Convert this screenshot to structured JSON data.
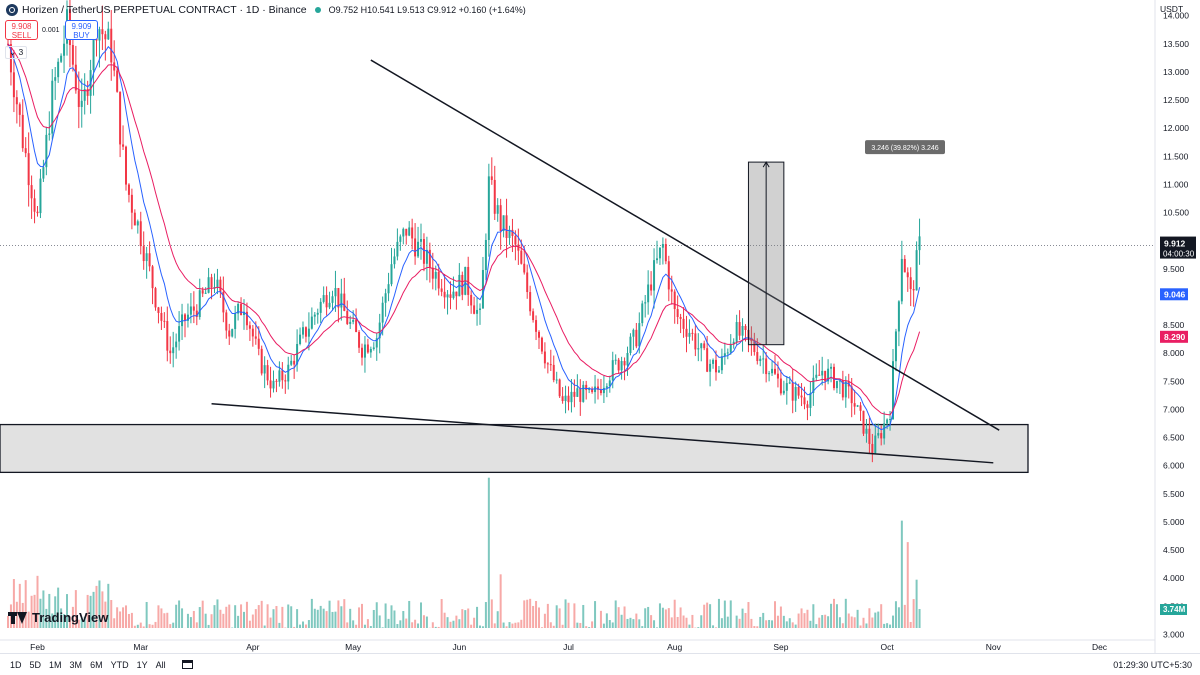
{
  "header": {
    "title": "Horizen / TetherUS PERPETUAL CONTRACT · 1D · Binance",
    "ohlc": "O9.752 H10.541 L9.513 C9.912 +0.160 (+1.64%)",
    "sell_price": "9.908",
    "sell_label": "SELL",
    "spread": "0.001",
    "buy_price": "9.909",
    "buy_label": "BUY",
    "indicators_count": "3",
    "currency": "USDT"
  },
  "brand": "TradingView",
  "bottom": {
    "timeframes": [
      "1D",
      "5D",
      "1M",
      "3M",
      "6M",
      "YTD",
      "1Y",
      "All"
    ],
    "clock": "01:29:30 UTC+5:30"
  },
  "colors": {
    "up": "#26a69a",
    "down": "#f23645",
    "ema_fast": "#2962ff",
    "ema_slow": "#e91e63",
    "vol_up": "#7fc8bf",
    "vol_down": "#f7a9a7"
  },
  "chart_data": {
    "type": "candlestick",
    "symbol": "Horizen / TetherUS PERPETUAL CONTRACT",
    "interval": "1D",
    "exchange": "Binance",
    "y_ticks": [
      "14.000",
      "13.500",
      "13.000",
      "12.500",
      "12.000",
      "11.500",
      "11.000",
      "10.500",
      "10.000",
      "9.500",
      "9.000",
      "8.500",
      "8.000",
      "7.500",
      "7.000",
      "6.500",
      "6.000",
      "5.500",
      "5.000",
      "4.500",
      "4.000",
      "3.500",
      "3.000"
    ],
    "x_labels": [
      "Feb",
      "Mar",
      "Apr",
      "May",
      "Jun",
      "Jul",
      "Aug",
      "Sep",
      "Oct",
      "Nov",
      "Dec"
    ],
    "ylim": [
      2.9,
      14.1
    ],
    "last_price": "9.912",
    "countdown": "04:00:30",
    "ema_fast_value": "9.046",
    "ema_slow_value": "8.290",
    "volume_value": "3.74M",
    "measure_label": "3.246 (39.82%) 3.246",
    "measure": {
      "from": 8.15,
      "to": 11.396,
      "start_day": 251,
      "end_day": 263
    },
    "support_zone": {
      "from": 5.88,
      "to": 6.73
    },
    "trendlines": [
      {
        "name": "descending resistance",
        "points": [
          [
            123,
            13.21
          ],
          [
            336,
            6.63
          ]
        ]
      },
      {
        "name": "descending support",
        "points": [
          [
            69,
            7.1
          ],
          [
            334,
            6.05
          ]
        ]
      }
    ],
    "price_path": [
      [
        0,
        13.5
      ],
      [
        5,
        11.8
      ],
      [
        10,
        10.4
      ],
      [
        15,
        12.6
      ],
      [
        20,
        13.8
      ],
      [
        25,
        12.2
      ],
      [
        30,
        13.9
      ],
      [
        35,
        13.4
      ],
      [
        40,
        11.0
      ],
      [
        45,
        10.1
      ],
      [
        50,
        9.0
      ],
      [
        55,
        8.0
      ],
      [
        60,
        8.6
      ],
      [
        65,
        8.9
      ],
      [
        70,
        9.3
      ],
      [
        75,
        8.4
      ],
      [
        80,
        8.9
      ],
      [
        85,
        7.9
      ],
      [
        90,
        7.4
      ],
      [
        95,
        7.7
      ],
      [
        100,
        8.3
      ],
      [
        105,
        8.8
      ],
      [
        110,
        9.2
      ],
      [
        115,
        8.6
      ],
      [
        120,
        8.1
      ],
      [
        125,
        8.3
      ],
      [
        130,
        9.6
      ],
      [
        135,
        10.2
      ],
      [
        140,
        9.8
      ],
      [
        145,
        9.4
      ],
      [
        150,
        9.1
      ],
      [
        155,
        9.3
      ],
      [
        160,
        8.6
      ],
      [
        163,
        11.0
      ],
      [
        167,
        10.3
      ],
      [
        172,
        9.9
      ],
      [
        178,
        8.7
      ],
      [
        183,
        7.8
      ],
      [
        188,
        7.1
      ],
      [
        193,
        7.3
      ],
      [
        198,
        7.2
      ],
      [
        203,
        7.6
      ],
      [
        208,
        7.9
      ],
      [
        213,
        8.3
      ],
      [
        218,
        9.3
      ],
      [
        222,
        9.9
      ],
      [
        226,
        8.7
      ],
      [
        231,
        8.4
      ],
      [
        236,
        7.9
      ],
      [
        241,
        7.7
      ],
      [
        246,
        8.4
      ],
      [
        251,
        8.2
      ],
      [
        256,
        7.9
      ],
      [
        261,
        7.5
      ],
      [
        266,
        7.3
      ],
      [
        271,
        7.2
      ],
      [
        276,
        7.7
      ],
      [
        281,
        7.5
      ],
      [
        286,
        7.2
      ],
      [
        290,
        6.7
      ],
      [
        293,
        6.3
      ],
      [
        296,
        6.6
      ],
      [
        299,
        7.0
      ],
      [
        303,
        9.8
      ],
      [
        306,
        9.0
      ],
      [
        309,
        9.9
      ]
    ],
    "volume_hotspots": [
      [
        163,
        5.8
      ],
      [
        167,
        4.0
      ],
      [
        303,
        5.0
      ],
      [
        305,
        4.6
      ],
      [
        308,
        3.9
      ]
    ],
    "volume_ylim": [
      3.0,
      5.85
    ]
  }
}
